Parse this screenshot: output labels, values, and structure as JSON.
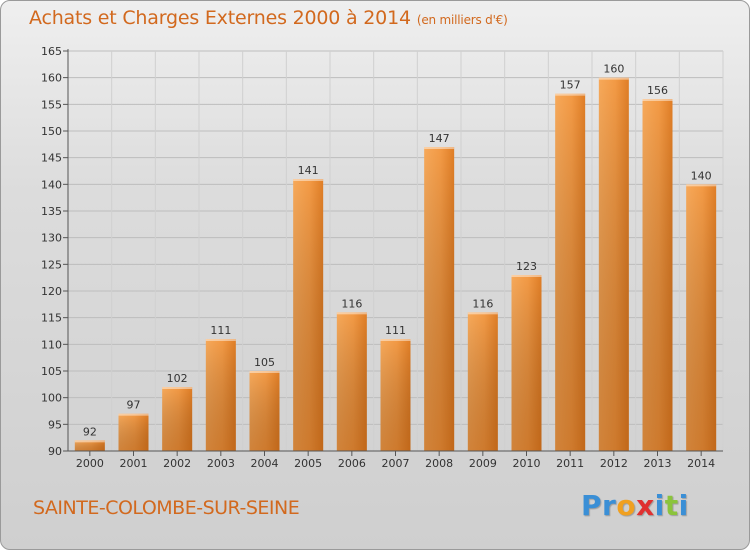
{
  "header": {
    "title": "Achats et Charges Externes 2000 à 2014",
    "subtitle": "(en milliers d'€)"
  },
  "footer": {
    "commune": "SAINTE-COLOMBE-SUR-SEINE",
    "logo_letters": [
      "P",
      "r",
      "o",
      "x",
      "i",
      "t",
      "i"
    ],
    "logo_colors": [
      "#3a8fd6",
      "#3a8fd6",
      "#f0a020",
      "#e03030",
      "#3a8fd6",
      "#8bc43c",
      "#3a8fd6"
    ]
  },
  "chart_data": {
    "type": "bar",
    "categories": [
      "2000",
      "2001",
      "2002",
      "2003",
      "2004",
      "2005",
      "2006",
      "2007",
      "2008",
      "2009",
      "2010",
      "2011",
      "2012",
      "2013",
      "2014"
    ],
    "values": [
      92,
      97,
      102,
      111,
      105,
      141,
      116,
      111,
      147,
      116,
      123,
      157,
      160,
      156,
      140
    ],
    "data_labels": [
      "92",
      "97",
      "102",
      "111",
      "105",
      "141",
      "116",
      "111",
      "147",
      "116",
      "123",
      "157",
      "160",
      "156",
      "140"
    ],
    "ylim": [
      90,
      165
    ],
    "yticks": [
      90,
      95,
      100,
      105,
      110,
      115,
      120,
      125,
      130,
      135,
      140,
      145,
      150,
      155,
      160,
      165
    ],
    "ytick_labels": [
      "90",
      "95",
      "100",
      "105",
      "110",
      "115",
      "120",
      "125",
      "130",
      "135",
      "140",
      "145",
      "150",
      "155",
      "160",
      "165"
    ],
    "grid": true,
    "bar_color": "#f0913a"
  }
}
